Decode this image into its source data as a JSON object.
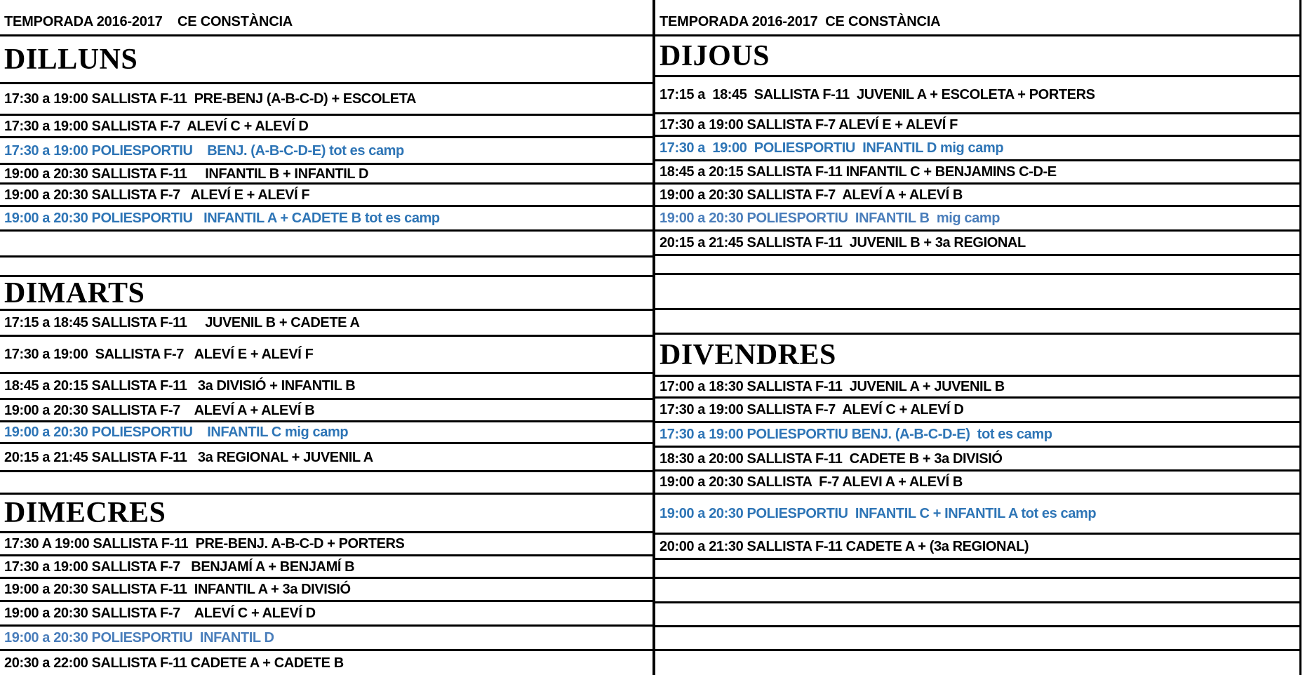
{
  "colors": {
    "text": "#000000",
    "grid_line": "#000000",
    "poliesportiu_blue": "#2e75b6",
    "poliesportiu_blue_light": "#4a7ebb"
  },
  "columns": [
    {
      "side": "left",
      "rows": [
        {
          "kind": "season",
          "text": "TEMPORADA 2016-2017    CE CONSTÀNCIA"
        },
        {
          "kind": "day",
          "text": "DILLUNS"
        },
        {
          "kind": "entry",
          "style": "black",
          "text": "17:30 a 19:00 SALLISTA F-11  PRE-BENJ (A-B-C-D) + ESCOLETA"
        },
        {
          "kind": "entry",
          "style": "black",
          "text": "17:30 a 19:00 SALLISTA F-7  ALEVÍ C + ALEVÍ D"
        },
        {
          "kind": "entry",
          "style": "blue",
          "text": "17:30 a 19:00 POLIESPORTIU    BENJ. (A-B-C-D-E) tot es camp"
        },
        {
          "kind": "entry",
          "style": "black",
          "text": "19:00 a 20:30 SALLISTA F-11     INFANTIL B + INFANTIL D"
        },
        {
          "kind": "entry",
          "style": "black",
          "text": "19:00 a 20:30 SALLISTA F-7   ALEVÍ E + ALEVÍ F"
        },
        {
          "kind": "entry",
          "style": "blue",
          "text": "19:00 a 20:30 POLIESPORTIU   INFANTIL A + CADETE B tot es camp"
        },
        {
          "kind": "empty",
          "text": ""
        },
        {
          "kind": "empty",
          "text": ""
        },
        {
          "kind": "day",
          "text": "DIMARTS"
        },
        {
          "kind": "entry",
          "style": "black",
          "text": "17:15 a 18:45 SALLISTA F-11     JUVENIL B + CADETE A"
        },
        {
          "kind": "entry",
          "style": "black",
          "text": "17:30 a 19:00  SALLISTA F-7   ALEVÍ E + ALEVÍ F"
        },
        {
          "kind": "entry",
          "style": "black",
          "text": "18:45 a 20:15 SALLISTA F-11   3a DIVISIÓ + INFANTIL B"
        },
        {
          "kind": "entry",
          "style": "black",
          "text": "19:00 a 20:30 SALLISTA F-7    ALEVÍ A + ALEVÍ B"
        },
        {
          "kind": "entry",
          "style": "blue",
          "text": "19:00 a 20:30 POLIESPORTIU    INFANTIL C mig camp"
        },
        {
          "kind": "entry",
          "style": "black",
          "text": "20:15 a 21:45 SALLISTA F-11   3a REGIONAL + JUVENIL A"
        },
        {
          "kind": "empty",
          "text": ""
        },
        {
          "kind": "day",
          "text": "DIMECRES"
        },
        {
          "kind": "entry",
          "style": "black",
          "text": "17:30 A 19:00 SALLISTA F-11  PRE-BENJ. A-B-C-D + PORTERS"
        },
        {
          "kind": "entry",
          "style": "black",
          "text": "17:30 a 19:00 SALLISTA F-7   BENJAMÍ A + BENJAMÍ B"
        },
        {
          "kind": "entry",
          "style": "black",
          "text": "19:00 a 20:30 SALLISTA F-11  INFANTIL A + 3a DIVISIÓ"
        },
        {
          "kind": "entry",
          "style": "black",
          "text": "19:00 a 20:30 SALLISTA F-7    ALEVÍ C + ALEVÍ D"
        },
        {
          "kind": "entry",
          "style": "blue-light",
          "text": "19:00 a 20:30 POLIESPORTIU  INFANTIL D"
        },
        {
          "kind": "entry",
          "style": "black",
          "text": "20:30 a 22:00 SALLISTA F-11 CADETE A + CADETE B"
        }
      ]
    },
    {
      "side": "right",
      "rows": [
        {
          "kind": "season",
          "text": "TEMPORADA 2016-2017  CE CONSTÀNCIA"
        },
        {
          "kind": "day",
          "text": "DIJOUS"
        },
        {
          "kind": "entry",
          "style": "black",
          "text": "17:15 a  18:45  SALLISTA F-11  JUVENIL A + ESCOLETA + PORTERS"
        },
        {
          "kind": "entry",
          "style": "black",
          "text": "17:30 a 19:00 SALLISTA F-7 ALEVÍ E + ALEVÍ F"
        },
        {
          "kind": "entry",
          "style": "blue",
          "text": "17:30 a  19:00  POLIESPORTIU  INFANTIL D mig camp"
        },
        {
          "kind": "entry",
          "style": "black",
          "text": "18:45 a 20:15 SALLISTA F-11 INFANTIL C + BENJAMINS C-D-E"
        },
        {
          "kind": "entry",
          "style": "black",
          "text": "19:00 a 20:30 SALLISTA F-7  ALEVÍ A + ALEVÍ B"
        },
        {
          "kind": "entry",
          "style": "blue-light",
          "text": "19:00 a 20:30 POLIESPORTIU  INFANTIL B  mig camp"
        },
        {
          "kind": "entry",
          "style": "black",
          "text": "20:15 a 21:45 SALLISTA F-11  JUVENIL B + 3a REGIONAL"
        },
        {
          "kind": "empty",
          "text": ""
        },
        {
          "kind": "empty",
          "text": ""
        },
        {
          "kind": "empty",
          "text": ""
        },
        {
          "kind": "day",
          "text": "DIVENDRES"
        },
        {
          "kind": "entry",
          "style": "black",
          "text": "17:00 a 18:30 SALLISTA F-11  JUVENIL A + JUVENIL B"
        },
        {
          "kind": "entry",
          "style": "black",
          "text": "17:30 a 19:00 SALLISTA F-7  ALEVÍ C + ALEVÍ D"
        },
        {
          "kind": "entry",
          "style": "blue",
          "text": "17:30 a 19:00 POLIESPORTIU BENJ. (A-B-C-D-E)  tot es camp"
        },
        {
          "kind": "entry",
          "style": "black",
          "text": "18:30 a 20:00 SALLISTA F-11  CADETE B + 3a DIVISIÓ"
        },
        {
          "kind": "entry",
          "style": "black",
          "text": "19:00 a 20:30 SALLISTA  F-7 ALEVI A + ALEVÍ B"
        },
        {
          "kind": "entry",
          "style": "blue",
          "text": "19:00 a 20:30 POLIESPORTIU  INFANTIL C + INFANTIL A tot es camp"
        },
        {
          "kind": "entry",
          "style": "black",
          "text": "20:00 a 21:30 SALLISTA F-11 CADETE A + (3a REGIONAL)"
        },
        {
          "kind": "empty",
          "text": ""
        },
        {
          "kind": "empty",
          "text": ""
        },
        {
          "kind": "empty",
          "text": ""
        },
        {
          "kind": "empty",
          "text": ""
        },
        {
          "kind": "empty",
          "text": ""
        }
      ]
    }
  ]
}
